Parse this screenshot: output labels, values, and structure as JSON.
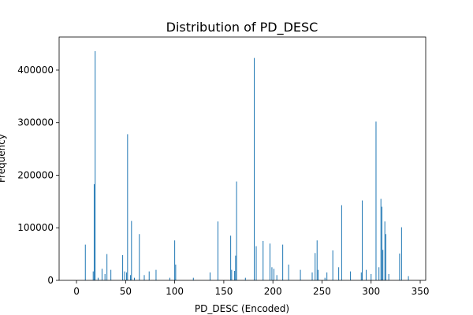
{
  "chart_data": {
    "type": "bar",
    "title": "Distribution of PD_DESC",
    "x_label": "PD_DESC (Encoded)",
    "y_label": "Frequency",
    "color": "#1f77b4",
    "x": [
      9,
      17,
      18,
      19,
      22,
      26,
      29,
      31,
      35,
      47,
      49,
      51,
      52,
      55,
      56,
      59,
      64,
      69,
      74,
      81,
      95,
      100,
      101,
      119,
      136,
      144,
      157,
      158,
      161,
      162,
      163,
      172,
      181,
      183,
      190,
      197,
      199,
      201,
      204,
      210,
      216,
      228,
      240,
      243,
      245,
      246,
      253,
      255,
      261,
      267,
      270,
      279,
      290,
      291,
      295,
      300,
      305,
      308,
      310,
      311,
      312,
      314,
      315,
      318,
      329,
      331,
      338
    ],
    "values": [
      68000,
      17000,
      183000,
      436000,
      5000,
      22000,
      12000,
      50000,
      20000,
      48000,
      17000,
      15000,
      278000,
      10000,
      113000,
      5000,
      88000,
      10000,
      17000,
      20000,
      5000,
      76000,
      30000,
      5000,
      15000,
      112000,
      85000,
      20000,
      18000,
      47000,
      188000,
      5000,
      423000,
      65000,
      75000,
      70000,
      25000,
      22000,
      10000,
      68000,
      30000,
      20000,
      15000,
      52000,
      76000,
      20000,
      5000,
      15000,
      57000,
      25000,
      143000,
      17000,
      15000,
      152000,
      20000,
      12000,
      302000,
      25000,
      155000,
      140000,
      58000,
      112000,
      88000,
      12000,
      51000,
      101000,
      8000
    ],
    "xlim": [
      -17.7,
      355.6
    ],
    "ylim": [
      0,
      462900
    ],
    "xticks": [
      0,
      50,
      100,
      150,
      200,
      250,
      300,
      350
    ],
    "yticks": [
      0,
      100000,
      200000,
      300000,
      400000
    ]
  }
}
